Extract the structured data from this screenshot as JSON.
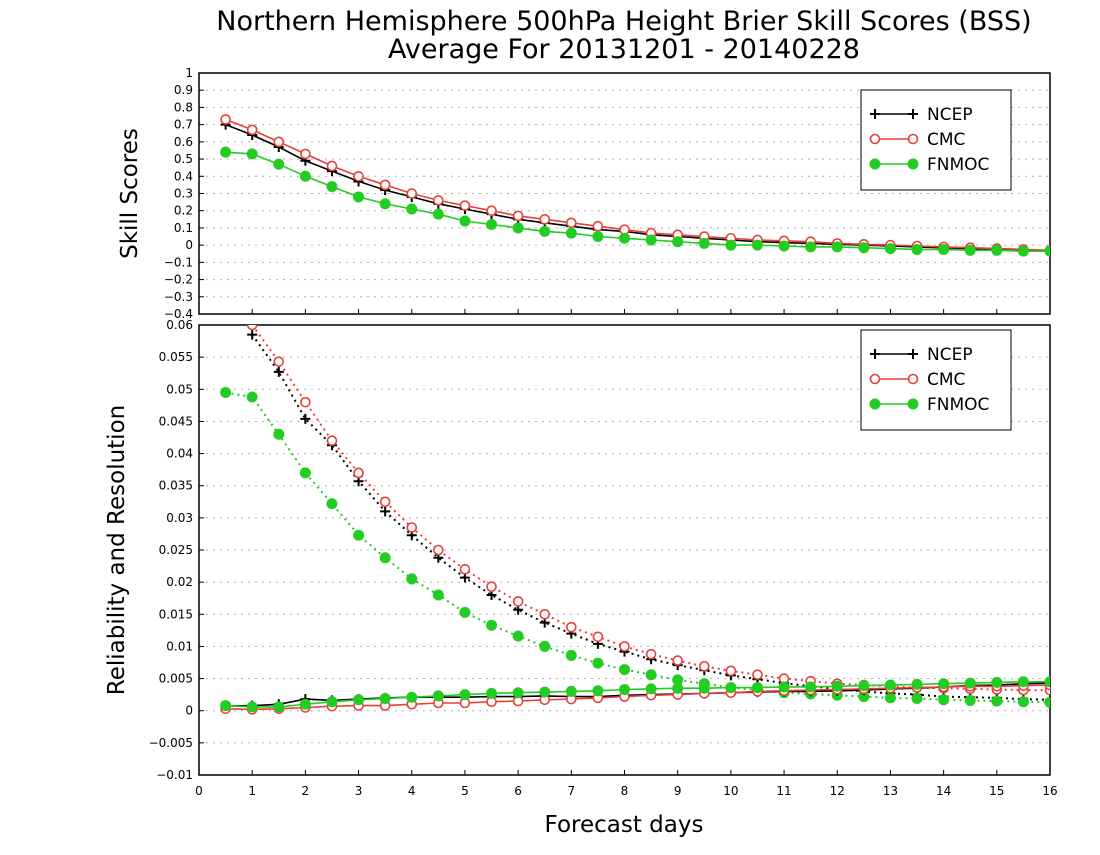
{
  "chart_data": {
    "type": "line",
    "title": "Northern Hemisphere 500hPa Height Brier Skill Scores (BSS)",
    "subtitle": "Average For 20131201 - 20140228",
    "xlabel": "Forecast days",
    "xlim": [
      0,
      16
    ],
    "x_ticks": [
      "0",
      "1",
      "2",
      "3",
      "4",
      "5",
      "6",
      "7",
      "8",
      "9",
      "10",
      "11",
      "12",
      "13",
      "14",
      "15",
      "16"
    ],
    "x": [
      0.5,
      1,
      1.5,
      2,
      2.5,
      3,
      3.5,
      4,
      4.5,
      5,
      5.5,
      6,
      6.5,
      7,
      7.5,
      8,
      8.5,
      9,
      9.5,
      10,
      10.5,
      11,
      11.5,
      12,
      12.5,
      13,
      13.5,
      14,
      14.5,
      15,
      15.5,
      16
    ],
    "legend_position": "top-right",
    "colors": {
      "NCEP": "#000000",
      "CMC": "#e8403a",
      "FNMOC": "#22cc22"
    },
    "panels": [
      {
        "id": "skill",
        "ylabel": "Skill Scores",
        "ylim": [
          -0.4,
          1
        ],
        "y_ticks": [
          "1",
          "0.9",
          "0.8",
          "0.7",
          "0.6",
          "0.5",
          "0.4",
          "0.3",
          "0.2",
          "0.1",
          "0",
          "−0.1",
          "−0.2",
          "−0.3",
          "−0.4"
        ],
        "grid": true,
        "legend": [
          "NCEP",
          "CMC",
          "FNMOC"
        ],
        "series": [
          {
            "name": "NCEP",
            "values": [
              0.7,
              0.64,
              0.57,
              0.49,
              0.43,
              0.37,
              0.32,
              0.28,
              0.24,
              0.21,
              0.18,
              0.15,
              0.13,
              0.11,
              0.09,
              0.08,
              0.06,
              0.05,
              0.04,
              0.03,
              0.02,
              0.015,
              0.01,
              0.005,
              0.0,
              -0.005,
              -0.01,
              -0.015,
              -0.02,
              -0.025,
              -0.03,
              -0.03
            ]
          },
          {
            "name": "CMC",
            "values": [
              0.73,
              0.67,
              0.6,
              0.53,
              0.46,
              0.4,
              0.35,
              0.3,
              0.26,
              0.23,
              0.2,
              0.17,
              0.15,
              0.13,
              0.11,
              0.09,
              0.07,
              0.06,
              0.05,
              0.04,
              0.03,
              0.025,
              0.02,
              0.01,
              0.005,
              0.0,
              -0.005,
              -0.01,
              -0.015,
              -0.02,
              -0.025,
              -0.03
            ]
          },
          {
            "name": "FNMOC",
            "values": [
              0.54,
              0.53,
              0.47,
              0.4,
              0.34,
              0.28,
              0.24,
              0.21,
              0.18,
              0.14,
              0.12,
              0.1,
              0.08,
              0.07,
              0.05,
              0.04,
              0.03,
              0.02,
              0.01,
              0.0,
              0.0,
              -0.005,
              -0.01,
              -0.01,
              -0.015,
              -0.02,
              -0.025,
              -0.025,
              -0.03,
              -0.03,
              -0.035,
              -0.035
            ]
          }
        ]
      },
      {
        "id": "reliability_resolution",
        "ylabel": "Reliability and Resolution",
        "ylim": [
          -0.01,
          0.06
        ],
        "y_ticks": [
          "0.06",
          "0.055",
          "0.05",
          "0.045",
          "0.04",
          "0.035",
          "0.03",
          "0.025",
          "0.02",
          "0.015",
          "0.01",
          "0.005",
          "0",
          "−0.005",
          "−0.01"
        ],
        "grid": true,
        "legend": [
          "NCEP",
          "CMC",
          "FNMOC"
        ],
        "series": [
          {
            "name": "NCEP",
            "kind": "resolution",
            "dashed": true,
            "values": [
              null,
              0.0585,
              0.0527,
              0.0454,
              0.0413,
              0.0357,
              0.031,
              0.0273,
              0.0238,
              0.0207,
              0.018,
              0.0157,
              0.0137,
              0.012,
              0.0104,
              0.0092,
              0.008,
              0.0071,
              0.0063,
              0.0055,
              0.0049,
              0.0043,
              0.0038,
              0.0034,
              0.003,
              0.0027,
              0.0025,
              0.0022,
              0.0021,
              0.002,
              0.0018,
              0.0017
            ]
          },
          {
            "name": "CMC",
            "kind": "resolution",
            "dashed": true,
            "values": [
              null,
              0.06,
              0.0543,
              0.048,
              0.042,
              0.037,
              0.0325,
              0.0285,
              0.025,
              0.022,
              0.0193,
              0.017,
              0.015,
              0.013,
              0.0115,
              0.01,
              0.0088,
              0.0078,
              0.0069,
              0.0062,
              0.0056,
              0.005,
              0.0046,
              0.0042,
              0.004,
              0.0038,
              0.0036,
              0.0035,
              0.0034,
              0.0033,
              0.0032,
              0.0032
            ]
          },
          {
            "name": "FNMOC",
            "kind": "resolution",
            "dashed": true,
            "values": [
              0.0495,
              0.0488,
              0.043,
              0.037,
              0.0322,
              0.0273,
              0.0238,
              0.0205,
              0.018,
              0.0153,
              0.0133,
              0.0116,
              0.01,
              0.0086,
              0.0074,
              0.0064,
              0.0056,
              0.0048,
              0.0042,
              0.0036,
              0.0032,
              0.0028,
              0.0026,
              0.0024,
              0.0022,
              0.002,
              0.0019,
              0.0017,
              0.0016,
              0.0015,
              0.0014,
              0.0013
            ]
          },
          {
            "name": "NCEP",
            "kind": "reliability",
            "dashed": false,
            "values": [
              0.0007,
              0.0008,
              0.001,
              0.0018,
              0.0016,
              0.0018,
              0.002,
              0.0021,
              0.0021,
              0.0021,
              0.0022,
              0.0022,
              0.0023,
              0.0022,
              0.0022,
              0.0024,
              0.0025,
              0.0026,
              0.0027,
              0.0028,
              0.0029,
              0.003,
              0.003,
              0.0031,
              0.0032,
              0.0034,
              0.0035,
              0.0037,
              0.0039,
              0.004,
              0.0042,
              0.0043
            ]
          },
          {
            "name": "CMC",
            "kind": "reliability",
            "dashed": false,
            "values": [
              0.0003,
              0.0002,
              0.0003,
              0.0005,
              0.0007,
              0.0008,
              0.0008,
              0.001,
              0.0012,
              0.0012,
              0.0014,
              0.0015,
              0.0017,
              0.0018,
              0.002,
              0.0022,
              0.0024,
              0.0025,
              0.0027,
              0.0028,
              0.003,
              0.0031,
              0.0032,
              0.0033,
              0.0034,
              0.0035,
              0.0036,
              0.0037,
              0.0038,
              0.0038,
              0.0039,
              0.004
            ]
          },
          {
            "name": "FNMOC",
            "kind": "reliability",
            "dashed": false,
            "values": [
              0.0008,
              0.0006,
              0.0006,
              0.001,
              0.0014,
              0.0017,
              0.0019,
              0.0021,
              0.0023,
              0.0025,
              0.0027,
              0.0028,
              0.0029,
              0.003,
              0.0031,
              0.0033,
              0.0034,
              0.0035,
              0.0035,
              0.0036,
              0.0036,
              0.0037,
              0.0037,
              0.0038,
              0.0039,
              0.004,
              0.0041,
              0.0042,
              0.0043,
              0.0044,
              0.0045,
              0.0045
            ]
          }
        ]
      }
    ]
  }
}
